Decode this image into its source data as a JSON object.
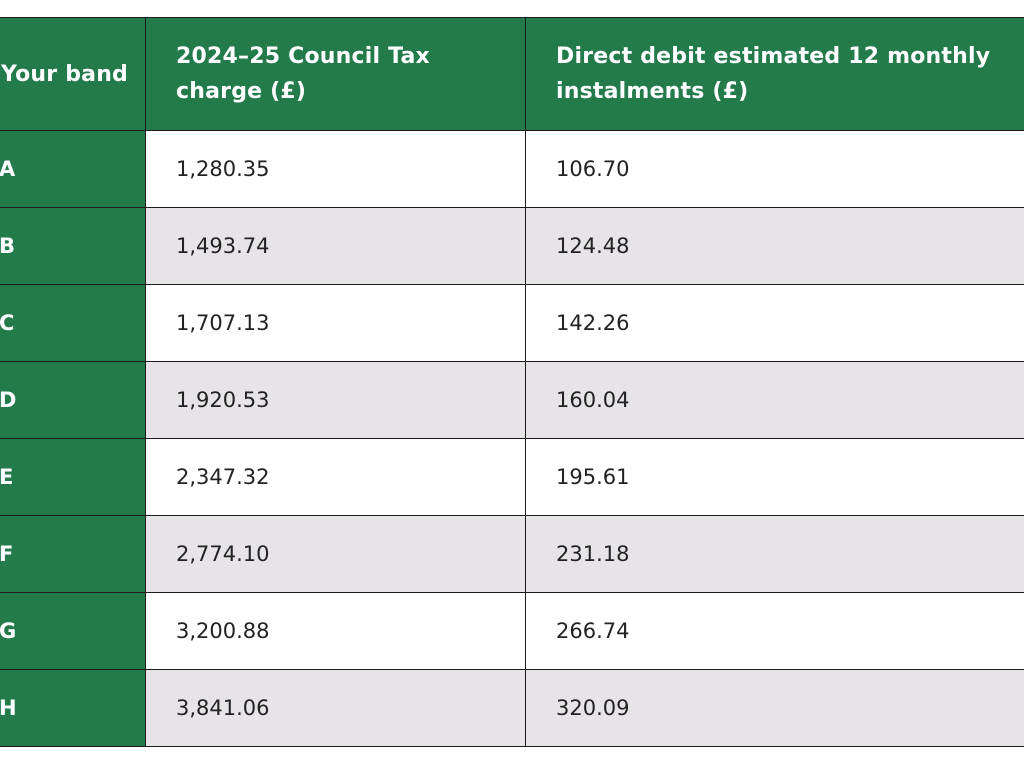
{
  "table": {
    "headers": {
      "band": "Your band",
      "charge": "2024–25 Council Tax charge (£)",
      "instalment": "Direct debit estimated 12 monthly instalments (£)"
    },
    "rows": [
      {
        "band": "A",
        "charge": "1,280.35",
        "instalment": "106.70"
      },
      {
        "band": "B",
        "charge": "1,493.74",
        "instalment": "124.48"
      },
      {
        "band": "C",
        "charge": "1,707.13",
        "instalment": "142.26"
      },
      {
        "band": "D",
        "charge": "1,920.53",
        "instalment": "160.04"
      },
      {
        "band": "E",
        "charge": "2,347.32",
        "instalment": "195.61"
      },
      {
        "band": "F",
        "charge": "2,774.10",
        "instalment": "231.18"
      },
      {
        "band": "G",
        "charge": "3,200.88",
        "instalment": "266.74"
      },
      {
        "band": "H",
        "charge": "3,841.06",
        "instalment": "320.09"
      }
    ]
  },
  "colors": {
    "header_green": "#237a4b",
    "alt_row": "#e6e4e7",
    "border": "#1c1c1c"
  }
}
